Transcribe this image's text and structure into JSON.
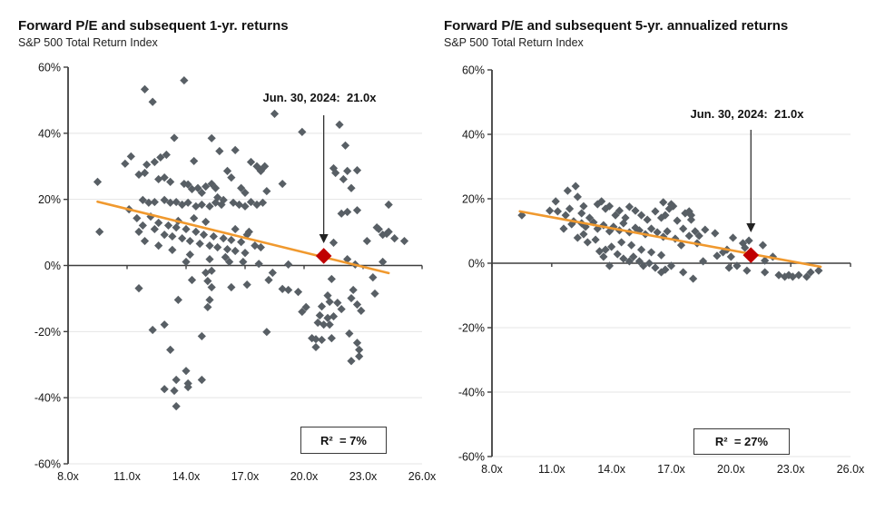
{
  "figure": {
    "background": "#ffffff",
    "colors": {
      "points": "#585f65",
      "trendline": "#f0992e",
      "highlight": "#c00000",
      "axis": "#3f3f3f",
      "gridline": "#e4e4e4"
    }
  },
  "chart_data": [
    {
      "type": "scatter",
      "title": "Forward P/E and subsequent 1-yr. returns",
      "subtitle": "S&P 500 Total Return Index",
      "xlim": [
        8,
        26
      ],
      "ylim": [
        -60,
        60
      ],
      "x_tick_values": [
        8,
        11,
        14,
        17,
        20,
        23,
        26
      ],
      "x_tick_labels": [
        "8.0x",
        "11.0x",
        "14.0x",
        "17.0x",
        "20.0x",
        "23.0x",
        "26.0x"
      ],
      "y_tick_values": [
        60,
        40,
        20,
        0,
        -20,
        -40,
        -60
      ],
      "y_tick_labels": [
        "60%",
        "40%",
        "20%",
        "0%",
        "-20%",
        "-40%",
        "-60%"
      ],
      "grid": true,
      "legend": "none",
      "r2_label": "R²  = 7%",
      "trendline": {
        "x1": 9.5,
        "y1": 19.3,
        "x2": 24.3,
        "y2": -2.3
      },
      "highlight": {
        "x": 21.0,
        "y": 2.9,
        "label": "Jun. 30, 2024:  21.0x"
      },
      "points": [
        [
          13.9,
          56.0
        ],
        [
          11.9,
          53.3
        ],
        [
          12.3,
          49.5
        ],
        [
          18.5,
          45.9
        ],
        [
          21.8,
          42.6
        ],
        [
          19.9,
          40.4
        ],
        [
          13.4,
          38.6
        ],
        [
          15.3,
          38.5
        ],
        [
          22.1,
          36.3
        ],
        [
          16.5,
          34.9
        ],
        [
          15.7,
          34.6
        ],
        [
          13.0,
          33.5
        ],
        [
          11.2,
          33.0
        ],
        [
          12.7,
          32.7
        ],
        [
          14.4,
          31.6
        ],
        [
          12.4,
          31.3
        ],
        [
          17.3,
          31.3
        ],
        [
          10.9,
          30.8
        ],
        [
          12.0,
          30.5
        ],
        [
          17.6,
          30.0
        ],
        [
          18.0,
          30.0
        ],
        [
          21.5,
          29.4
        ],
        [
          17.8,
          28.8
        ],
        [
          22.7,
          28.8
        ],
        [
          16.1,
          28.6
        ],
        [
          17.8,
          28.6
        ],
        [
          22.2,
          28.6
        ],
        [
          11.9,
          28.0
        ],
        [
          21.6,
          28.0
        ],
        [
          11.6,
          27.5
        ],
        [
          12.9,
          26.6
        ],
        [
          16.3,
          26.6
        ],
        [
          12.6,
          26.1
        ],
        [
          22.0,
          26.1
        ],
        [
          13.2,
          25.3
        ],
        [
          9.5,
          25.3
        ],
        [
          13.9,
          24.7
        ],
        [
          15.3,
          24.7
        ],
        [
          18.9,
          24.7
        ],
        [
          14.1,
          24.5
        ],
        [
          15.0,
          23.9
        ],
        [
          14.6,
          23.4
        ],
        [
          15.5,
          23.4
        ],
        [
          16.8,
          23.4
        ],
        [
          22.4,
          23.4
        ],
        [
          14.3,
          23.1
        ],
        [
          18.1,
          22.5
        ],
        [
          14.8,
          22.0
        ],
        [
          17.0,
          22.0
        ],
        [
          15.6,
          20.6
        ],
        [
          11.8,
          19.8
        ],
        [
          12.9,
          19.8
        ],
        [
          15.9,
          19.8
        ],
        [
          12.4,
          19.2
        ],
        [
          13.5,
          19.2
        ],
        [
          17.3,
          19.2
        ],
        [
          12.1,
          19.0
        ],
        [
          13.2,
          19.0
        ],
        [
          14.1,
          19.0
        ],
        [
          15.5,
          19.0
        ],
        [
          16.4,
          19.0
        ],
        [
          17.9,
          19.0
        ],
        [
          13.8,
          18.4
        ],
        [
          14.8,
          18.4
        ],
        [
          15.8,
          18.4
        ],
        [
          16.7,
          18.4
        ],
        [
          17.6,
          18.4
        ],
        [
          24.3,
          18.4
        ],
        [
          14.5,
          17.9
        ],
        [
          15.2,
          17.9
        ],
        [
          17.0,
          17.9
        ],
        [
          11.1,
          17.0
        ],
        [
          22.7,
          16.7
        ],
        [
          22.2,
          16.2
        ],
        [
          21.9,
          15.7
        ],
        [
          11.5,
          14.3
        ],
        [
          14.4,
          14.3
        ],
        [
          12.2,
          14.8
        ],
        [
          13.6,
          13.5
        ],
        [
          15.0,
          13.2
        ],
        [
          12.6,
          12.9
        ],
        [
          11.8,
          12.1
        ],
        [
          13.1,
          12.1
        ],
        [
          16.5,
          11.0
        ],
        [
          12.4,
          11.0
        ],
        [
          14.0,
          11.0
        ],
        [
          13.5,
          11.5
        ],
        [
          23.7,
          11.5
        ],
        [
          23.8,
          11.0
        ],
        [
          14.5,
          10.2
        ],
        [
          11.6,
          10.2
        ],
        [
          9.6,
          10.2
        ],
        [
          17.2,
          10.2
        ],
        [
          24.3,
          10.2
        ],
        [
          24.2,
          9.6
        ],
        [
          12.9,
          9.3
        ],
        [
          14.9,
          9.3
        ],
        [
          17.1,
          9.3
        ],
        [
          24.0,
          9.3
        ],
        [
          13.3,
          8.8
        ],
        [
          15.4,
          8.8
        ],
        [
          13.8,
          8.2
        ],
        [
          15.9,
          8.2
        ],
        [
          24.6,
          8.2
        ],
        [
          16.3,
          7.7
        ],
        [
          14.2,
          7.4
        ],
        [
          11.9,
          7.4
        ],
        [
          23.2,
          7.4
        ],
        [
          25.1,
          7.4
        ],
        [
          16.8,
          7.1
        ],
        [
          21.5,
          6.9
        ],
        [
          14.7,
          6.6
        ],
        [
          15.2,
          6.0
        ],
        [
          12.6,
          6.0
        ],
        [
          17.5,
          6.0
        ],
        [
          15.6,
          5.5
        ],
        [
          17.8,
          5.5
        ],
        [
          16.1,
          4.9
        ],
        [
          13.3,
          4.7
        ],
        [
          16.5,
          4.4
        ],
        [
          17.0,
          3.8
        ],
        [
          14.2,
          3.3
        ],
        [
          16.0,
          2.5
        ],
        [
          15.2,
          1.9
        ],
        [
          22.2,
          1.9
        ],
        [
          14.0,
          1.1
        ],
        [
          16.2,
          1.1
        ],
        [
          16.9,
          1.1
        ],
        [
          24.0,
          1.1
        ],
        [
          17.7,
          0.5
        ],
        [
          19.2,
          0.3
        ],
        [
          22.6,
          0.3
        ],
        [
          15.3,
          -1.6
        ],
        [
          15.0,
          -2.2
        ],
        [
          18.4,
          -2.2
        ],
        [
          23.5,
          -3.6
        ],
        [
          21.4,
          -4.1
        ],
        [
          14.3,
          -4.4
        ],
        [
          18.2,
          -4.4
        ],
        [
          15.1,
          -4.7
        ],
        [
          17.1,
          -5.8
        ],
        [
          15.3,
          -6.6
        ],
        [
          16.3,
          -6.6
        ],
        [
          11.6,
          -6.9
        ],
        [
          18.9,
          -7.1
        ],
        [
          19.2,
          -7.4
        ],
        [
          22.5,
          -7.4
        ],
        [
          19.7,
          -8.0
        ],
        [
          23.6,
          -8.5
        ],
        [
          21.2,
          -9.1
        ],
        [
          22.4,
          -9.9
        ],
        [
          13.6,
          -10.4
        ],
        [
          15.2,
          -10.4
        ],
        [
          21.3,
          -11.0
        ],
        [
          21.7,
          -11.3
        ],
        [
          22.7,
          -11.8
        ],
        [
          20.9,
          -12.4
        ],
        [
          15.1,
          -12.6
        ],
        [
          20.1,
          -12.6
        ],
        [
          21.9,
          -13.2
        ],
        [
          22.9,
          -13.7
        ],
        [
          19.9,
          -14.0
        ],
        [
          20.8,
          -15.1
        ],
        [
          21.5,
          -15.4
        ],
        [
          21.2,
          -15.9
        ],
        [
          20.7,
          -17.3
        ],
        [
          21.0,
          -17.9
        ],
        [
          21.3,
          -17.9
        ],
        [
          12.9,
          -17.9
        ],
        [
          12.3,
          -19.5
        ],
        [
          18.1,
          -20.1
        ],
        [
          22.3,
          -20.6
        ],
        [
          14.8,
          -21.4
        ],
        [
          20.4,
          -22.0
        ],
        [
          21.4,
          -22.0
        ],
        [
          20.6,
          -22.3
        ],
        [
          20.9,
          -22.5
        ],
        [
          22.7,
          -23.4
        ],
        [
          20.6,
          -24.7
        ],
        [
          13.2,
          -25.5
        ],
        [
          22.8,
          -25.5
        ],
        [
          22.8,
          -27.5
        ],
        [
          22.4,
          -28.9
        ],
        [
          14.0,
          -31.9
        ],
        [
          13.5,
          -34.6
        ],
        [
          14.8,
          -34.6
        ],
        [
          14.1,
          -35.7
        ],
        [
          14.1,
          -36.8
        ],
        [
          12.9,
          -37.4
        ],
        [
          13.4,
          -37.9
        ],
        [
          13.5,
          -42.6
        ]
      ]
    },
    {
      "type": "scatter",
      "title": "Forward P/E and subsequent 5-yr. annualized returns",
      "subtitle": "S&P 500 Total Return Index",
      "xlim": [
        8,
        26
      ],
      "ylim": [
        -60,
        60
      ],
      "x_tick_values": [
        8,
        11,
        14,
        17,
        20,
        23,
        26
      ],
      "x_tick_labels": [
        "8.0x",
        "11.0x",
        "14.0x",
        "17.0x",
        "20.0x",
        "23.0x",
        "26.0x"
      ],
      "y_tick_values": [
        60,
        40,
        20,
        0,
        -20,
        -40,
        -60
      ],
      "y_tick_labels": [
        "60%",
        "40%",
        "20%",
        "0%",
        "-20%",
        "-40%",
        "-60%"
      ],
      "grid": true,
      "legend": "none",
      "r2_label": "R²  = 27%",
      "trendline": {
        "x1": 9.4,
        "y1": 16.1,
        "x2": 24.5,
        "y2": -1.1
      },
      "highlight": {
        "x": 21.0,
        "y": 2.5,
        "label": "Jun. 30, 2024:  21.0x"
      },
      "points": [
        [
          9.5,
          14.9
        ],
        [
          11.2,
          19.2
        ],
        [
          11.8,
          22.5
        ],
        [
          12.2,
          23.9
        ],
        [
          12.3,
          20.6
        ],
        [
          10.9,
          16.3
        ],
        [
          11.3,
          16.1
        ],
        [
          11.7,
          14.9
        ],
        [
          11.9,
          16.9
        ],
        [
          12.5,
          15.5
        ],
        [
          12.6,
          17.7
        ],
        [
          12.9,
          14.1
        ],
        [
          13.3,
          18.3
        ],
        [
          13.5,
          19.2
        ],
        [
          13.7,
          16.9
        ],
        [
          13.9,
          17.7
        ],
        [
          14.2,
          14.9
        ],
        [
          14.4,
          16.3
        ],
        [
          14.7,
          14.1
        ],
        [
          14.9,
          17.5
        ],
        [
          15.2,
          16.3
        ],
        [
          15.5,
          14.9
        ],
        [
          15.8,
          13.5
        ],
        [
          16.2,
          16.1
        ],
        [
          16.5,
          14.1
        ],
        [
          16.7,
          14.9
        ],
        [
          16.9,
          16.9
        ],
        [
          16.6,
          18.9
        ],
        [
          17.0,
          18.3
        ],
        [
          17.1,
          17.7
        ],
        [
          17.9,
          16.1
        ],
        [
          18.0,
          13.5
        ],
        [
          11.6,
          10.7
        ],
        [
          12.3,
          7.9
        ],
        [
          12.8,
          6.5
        ],
        [
          13.4,
          3.7
        ],
        [
          13.7,
          4.2
        ],
        [
          14.0,
          5.1
        ],
        [
          13.6,
          2.0
        ],
        [
          13.9,
          -0.8
        ],
        [
          14.3,
          2.8
        ],
        [
          14.6,
          1.4
        ],
        [
          14.9,
          0.6
        ],
        [
          15.1,
          2.0
        ],
        [
          15.4,
          0.6
        ],
        [
          15.6,
          -0.8
        ],
        [
          15.9,
          0.0
        ],
        [
          16.2,
          -1.4
        ],
        [
          16.5,
          -2.8
        ],
        [
          16.7,
          -2.0
        ],
        [
          17.0,
          -0.8
        ],
        [
          17.3,
          13.2
        ],
        [
          17.7,
          15.5
        ],
        [
          18.0,
          14.9
        ],
        [
          17.6,
          10.7
        ],
        [
          17.9,
          8.5
        ],
        [
          18.2,
          9.9
        ],
        [
          18.4,
          8.5
        ],
        [
          17.2,
          7.6
        ],
        [
          17.5,
          5.6
        ],
        [
          18.3,
          6.2
        ],
        [
          18.7,
          10.4
        ],
        [
          19.2,
          9.3
        ],
        [
          19.6,
          3.4
        ],
        [
          20.1,
          7.9
        ],
        [
          20.6,
          6.2
        ],
        [
          20.7,
          4.8
        ],
        [
          20.9,
          7.0
        ],
        [
          21.6,
          5.6
        ],
        [
          21.7,
          0.8
        ],
        [
          22.1,
          2.0
        ],
        [
          17.6,
          -2.8
        ],
        [
          18.1,
          -4.8
        ],
        [
          20.8,
          -2.3
        ],
        [
          21.7,
          -2.8
        ],
        [
          22.4,
          -3.7
        ],
        [
          22.7,
          -4.2
        ],
        [
          22.9,
          -3.7
        ],
        [
          23.1,
          -4.2
        ],
        [
          23.4,
          -3.7
        ],
        [
          23.8,
          -4.2
        ],
        [
          24.0,
          -2.8
        ],
        [
          24.4,
          -2.3
        ],
        [
          12.1,
          13.0
        ],
        [
          12.5,
          12.4
        ],
        [
          12.7,
          11.3
        ],
        [
          13.1,
          12.7
        ],
        [
          13.3,
          10.7
        ],
        [
          13.6,
          11.8
        ],
        [
          13.9,
          9.9
        ],
        [
          14.1,
          11.3
        ],
        [
          14.4,
          10.2
        ],
        [
          14.6,
          12.4
        ],
        [
          14.9,
          9.6
        ],
        [
          15.2,
          11.0
        ],
        [
          15.4,
          10.2
        ],
        [
          15.7,
          9.0
        ],
        [
          16.0,
          10.7
        ],
        [
          16.3,
          9.6
        ],
        [
          16.6,
          8.2
        ],
        [
          16.8,
          9.9
        ],
        [
          15.0,
          5.6
        ],
        [
          15.5,
          4.2
        ],
        [
          16.0,
          3.4
        ],
        [
          16.5,
          2.5
        ],
        [
          14.5,
          6.5
        ],
        [
          13.2,
          7.3
        ],
        [
          12.6,
          9.0
        ],
        [
          12.0,
          12.1
        ],
        [
          18.6,
          0.6
        ],
        [
          19.3,
          2.3
        ],
        [
          19.8,
          4.2
        ],
        [
          20.0,
          2.0
        ],
        [
          19.9,
          -1.4
        ],
        [
          20.3,
          -0.8
        ]
      ]
    }
  ]
}
